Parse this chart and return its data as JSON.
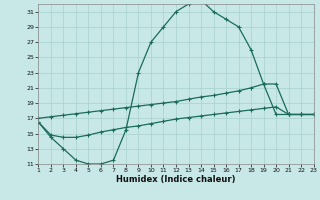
{
  "xlabel": "Humidex (Indice chaleur)",
  "bg_color": "#c8e8e8",
  "line_color": "#1a6b5a",
  "grid_color": "#a8d0cc",
  "xlim": [
    1,
    23
  ],
  "ylim": [
    11,
    32
  ],
  "xticks": [
    1,
    2,
    3,
    4,
    5,
    6,
    7,
    8,
    9,
    10,
    11,
    12,
    13,
    14,
    15,
    16,
    17,
    18,
    19,
    20,
    21,
    22,
    23
  ],
  "yticks": [
    11,
    13,
    15,
    17,
    19,
    21,
    23,
    25,
    27,
    29,
    31
  ],
  "curve1_x": [
    1,
    2,
    3,
    4,
    5,
    6,
    7,
    8,
    9,
    10,
    11,
    12,
    13,
    14,
    15,
    16,
    17,
    18,
    19,
    20,
    21,
    22,
    23
  ],
  "curve1_y": [
    16.5,
    14.5,
    13.0,
    11.5,
    11.0,
    11.0,
    11.5,
    15.5,
    23.0,
    27.0,
    29.0,
    31.0,
    32.0,
    32.5,
    31.0,
    30.0,
    29.0,
    26.0,
    21.5,
    17.5,
    17.5,
    17.5,
    17.5
  ],
  "curve2_x": [
    1,
    2,
    3,
    4,
    5,
    6,
    7,
    8,
    9,
    10,
    11,
    12,
    13,
    14,
    15,
    16,
    17,
    18,
    19,
    20,
    21,
    22,
    23
  ],
  "curve2_y": [
    17.0,
    17.2,
    17.4,
    17.6,
    17.8,
    18.0,
    18.2,
    18.4,
    18.6,
    18.8,
    19.0,
    19.2,
    19.5,
    19.8,
    20.0,
    20.3,
    20.6,
    21.0,
    21.5,
    21.5,
    17.5,
    17.5,
    17.5
  ],
  "curve3_x": [
    1,
    2,
    3,
    4,
    5,
    6,
    7,
    8,
    9,
    10,
    11,
    12,
    13,
    14,
    15,
    16,
    17,
    18,
    19,
    20,
    21,
    22,
    23
  ],
  "curve3_y": [
    16.5,
    14.8,
    14.5,
    14.5,
    14.8,
    15.2,
    15.5,
    15.8,
    16.0,
    16.3,
    16.6,
    16.9,
    17.1,
    17.3,
    17.5,
    17.7,
    17.9,
    18.1,
    18.3,
    18.5,
    17.5,
    17.5,
    17.5
  ]
}
